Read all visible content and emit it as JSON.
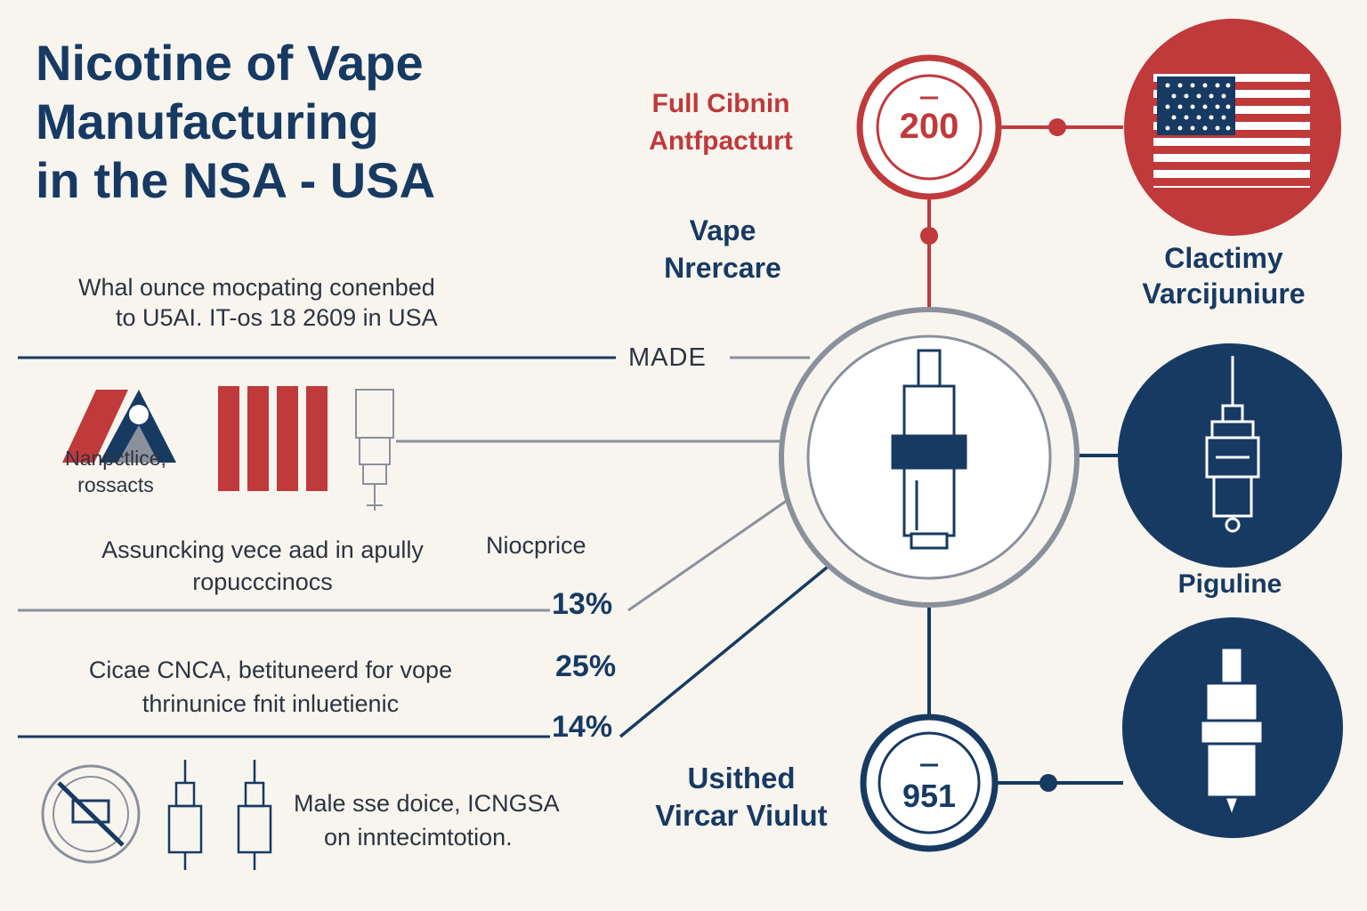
{
  "title": {
    "line1": "Nicotine of Vape",
    "line2": "Manufacturing",
    "line3": "in the NSA - USA"
  },
  "intro": {
    "line1": "Whal ounce mocpating conenbed",
    "line2": "to U5AI. IT-os 18 2609  in USA"
  },
  "made_label": "MADE",
  "top_left_label": {
    "line1": "Full Cibnin",
    "line2": "Antfpacturt"
  },
  "top_circle_value": "200",
  "vape_label": {
    "line1": "Vape",
    "line2": "Nrercare"
  },
  "flag_label": {
    "line1": "Clactimy",
    "line2": "Varcijuniure"
  },
  "icons_caption": {
    "line1": "Nanpctlice,",
    "line2": "rossacts"
  },
  "assembly_text": {
    "line1": "Assuncking vece aad in apully",
    "line2": "ropucccinocs"
  },
  "niocprice_label": "Niocprice",
  "percent_1": "13%",
  "percent_2": "25%",
  "percent_3": "14%",
  "cicae_text": {
    "line1": "Cicae CNCA, betituneerd for vope",
    "line2": "thrinunice fnit inluetienic"
  },
  "piguline_label": "Piguline",
  "bottom_circle_value": "951",
  "bottom_label": {
    "line1": "Usithed",
    "line2": "Vircar Viulut"
  },
  "male_text": {
    "line1": "Male sse doice, ICNGSA",
    "line2": "on inntecimtotion."
  },
  "colors": {
    "navy": "#173a63",
    "red": "#c0393b",
    "gray": "#8a909c",
    "background": "#f8f5ef"
  }
}
